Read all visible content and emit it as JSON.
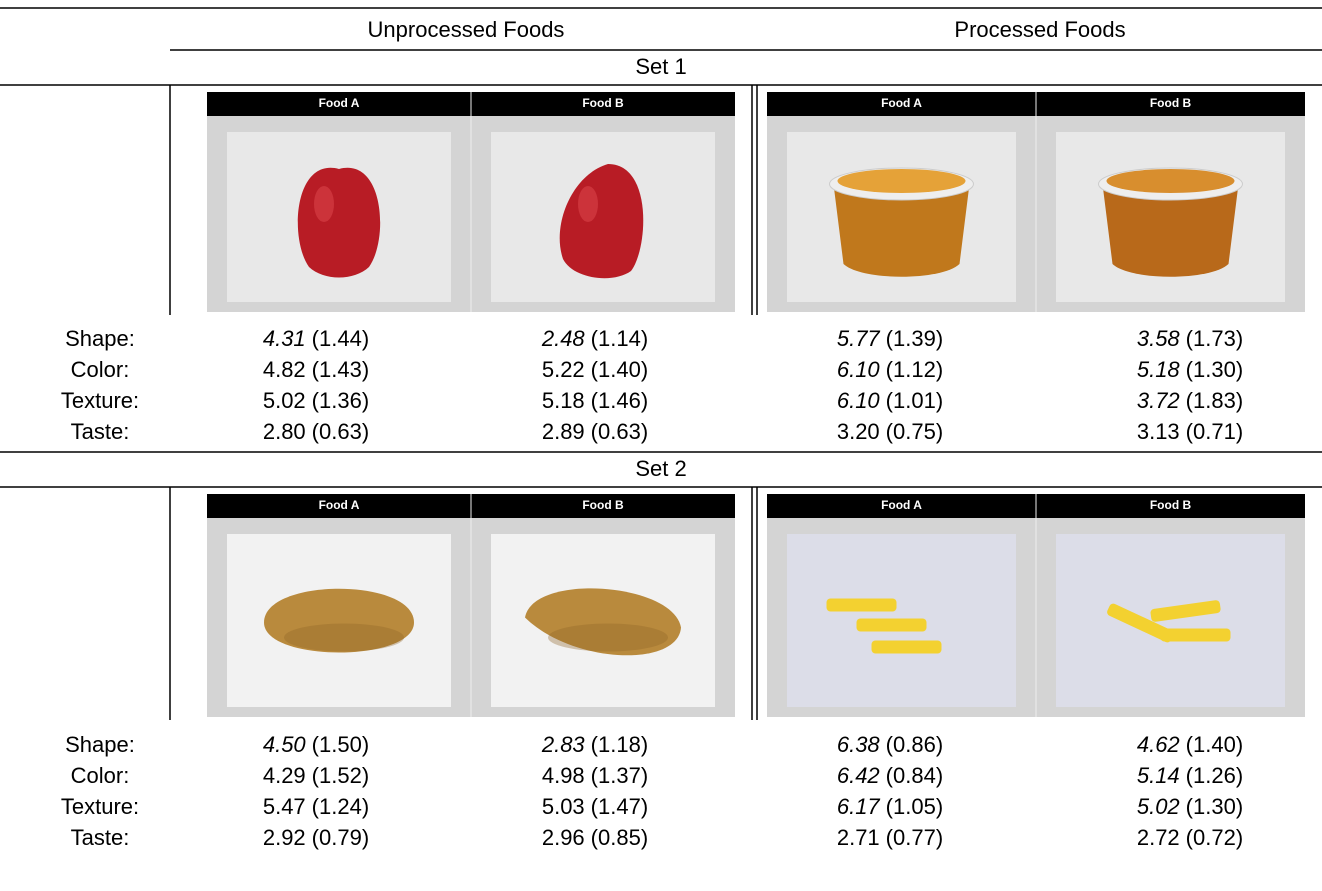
{
  "table": {
    "columns": [
      "Unprocessed Foods",
      "Processed Foods"
    ],
    "sets": [
      {
        "title": "Set 1",
        "panels": [
          [
            "Food A",
            "Food B"
          ],
          [
            "Food A",
            "Food B"
          ]
        ],
        "rows": [
          {
            "label": "Shape:",
            "cells": [
              {
                "mean": "4.31",
                "sd": "(1.44)",
                "italic": true
              },
              {
                "mean": "2.48",
                "sd": "(1.14)",
                "italic": true
              },
              {
                "mean": "5.77",
                "sd": "(1.39)",
                "italic": true
              },
              {
                "mean": "3.58",
                "sd": "(1.73)",
                "italic": true
              }
            ]
          },
          {
            "label": "Color:",
            "cells": [
              {
                "mean": "4.82",
                "sd": "(1.43)",
                "italic": false
              },
              {
                "mean": "5.22",
                "sd": "(1.40)",
                "italic": false
              },
              {
                "mean": "6.10",
                "sd": "(1.12)",
                "italic": true
              },
              {
                "mean": "5.18",
                "sd": "(1.30)",
                "italic": true
              }
            ]
          },
          {
            "label": "Texture:",
            "cells": [
              {
                "mean": "5.02",
                "sd": "(1.36)",
                "italic": false
              },
              {
                "mean": "5.18",
                "sd": "(1.46)",
                "italic": false
              },
              {
                "mean": "6.10",
                "sd": "(1.01)",
                "italic": true
              },
              {
                "mean": "3.72",
                "sd": "(1.83)",
                "italic": true
              }
            ]
          },
          {
            "label": "Taste:",
            "cells": [
              {
                "mean": "2.80",
                "sd": "(0.63)",
                "italic": false
              },
              {
                "mean": "2.89",
                "sd": "(0.63)",
                "italic": false
              },
              {
                "mean": "3.20",
                "sd": "(0.75)",
                "italic": false
              },
              {
                "mean": "3.13",
                "sd": "(0.71)",
                "italic": false
              }
            ]
          }
        ]
      },
      {
        "title": "Set 2",
        "panels": [
          [
            "Food A",
            "Food B"
          ],
          [
            "Food A",
            "Food B"
          ]
        ],
        "rows": [
          {
            "label": "Shape:",
            "cells": [
              {
                "mean": "4.50",
                "sd": "(1.50)",
                "italic": true
              },
              {
                "mean": "2.83",
                "sd": "(1.18)",
                "italic": true
              },
              {
                "mean": "6.38",
                "sd": "(0.86)",
                "italic": true
              },
              {
                "mean": "4.62",
                "sd": "(1.40)",
                "italic": true
              }
            ]
          },
          {
            "label": "Color:",
            "cells": [
              {
                "mean": "4.29",
                "sd": "(1.52)",
                "italic": false
              },
              {
                "mean": "4.98",
                "sd": "(1.37)",
                "italic": false
              },
              {
                "mean": "6.42",
                "sd": "(0.84)",
                "italic": true
              },
              {
                "mean": "5.14",
                "sd": "(1.26)",
                "italic": true
              }
            ]
          },
          {
            "label": "Texture:",
            "cells": [
              {
                "mean": "5.47",
                "sd": "(1.24)",
                "italic": false
              },
              {
                "mean": "5.03",
                "sd": "(1.47)",
                "italic": false
              },
              {
                "mean": "6.17",
                "sd": "(1.05)",
                "italic": true
              },
              {
                "mean": "5.02",
                "sd": "(1.30)",
                "italic": true
              }
            ]
          },
          {
            "label": "Taste:",
            "cells": [
              {
                "mean": "2.92",
                "sd": "(0.79)",
                "italic": false
              },
              {
                "mean": "2.96",
                "sd": "(0.85)",
                "italic": false
              },
              {
                "mean": "2.71",
                "sd": "(0.77)",
                "italic": false
              },
              {
                "mean": "2.72",
                "sd": "(0.72)",
                "italic": false
              }
            ]
          }
        ]
      }
    ]
  }
}
